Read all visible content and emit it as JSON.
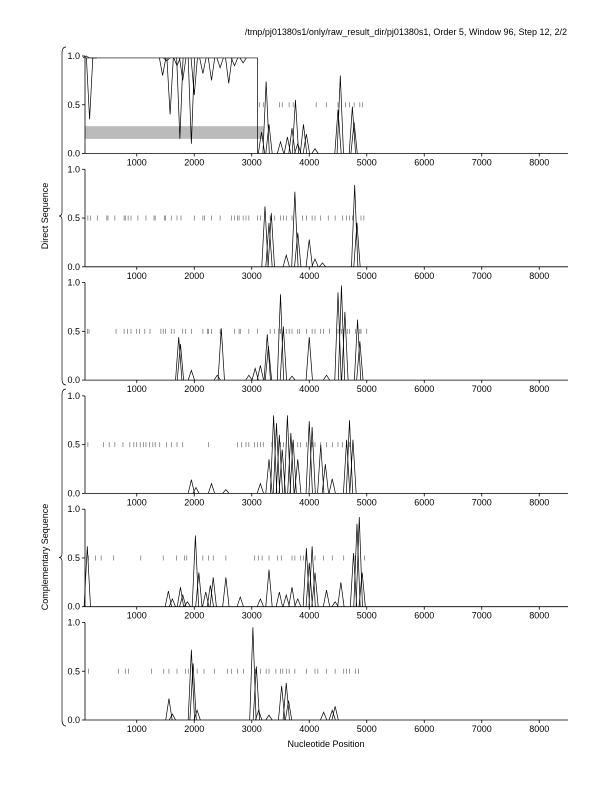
{
  "title": "/tmp/pj01380s1/only/raw_result_dir/pj01380s1, Order 5, Window 96, Step 12, 2/2",
  "xlabel": "Nucleotide Position",
  "group_labels": [
    "Direct Sequence",
    "Complementary Sequence"
  ],
  "colors": {
    "line": "#000000",
    "band": "#bbbbbb",
    "frame": "#000000"
  },
  "chart_data": [
    {
      "type": "line",
      "strand": "direct",
      "frame": 1,
      "xlim": [
        100,
        8500
      ],
      "ylim": [
        0,
        1
      ],
      "x_ticks": [
        1000,
        2000,
        3000,
        4000,
        5000,
        6000,
        7000,
        8000
      ],
      "y_ticks": [
        "0.0",
        "0.5",
        "1.0"
      ],
      "coding_region": [
        100,
        3100
      ],
      "shaded_band": [
        0.15,
        0.28
      ],
      "peaks": [
        {
          "x": 120,
          "y": 1.0
        },
        {
          "x": 180,
          "y": 0.35
        },
        {
          "x": 250,
          "y": 0.98
        },
        {
          "x": 1450,
          "y": 0.8
        },
        {
          "x": 1520,
          "y": 0.95
        },
        {
          "x": 1580,
          "y": 0.4
        },
        {
          "x": 1700,
          "y": 0.9
        },
        {
          "x": 1750,
          "y": 0.15
        },
        {
          "x": 1800,
          "y": 0.75
        },
        {
          "x": 1950,
          "y": 0.1
        },
        {
          "x": 2000,
          "y": 0.6
        },
        {
          "x": 2150,
          "y": 0.82
        },
        {
          "x": 2300,
          "y": 0.75
        },
        {
          "x": 2450,
          "y": 0.88
        },
        {
          "x": 2600,
          "y": 0.72
        },
        {
          "x": 2700,
          "y": 0.9
        },
        {
          "x": 2850,
          "y": 0.93
        },
        {
          "x": 3170,
          "y": 0.22
        },
        {
          "x": 3250,
          "y": 0.74
        },
        {
          "x": 3300,
          "y": 0.3
        },
        {
          "x": 3500,
          "y": 0.12
        },
        {
          "x": 3620,
          "y": 0.17
        },
        {
          "x": 3700,
          "y": 0.26
        },
        {
          "x": 3760,
          "y": 0.55
        },
        {
          "x": 3800,
          "y": 0.1
        },
        {
          "x": 3900,
          "y": 0.3
        },
        {
          "x": 3950,
          "y": 0.2
        },
        {
          "x": 4100,
          "y": 0.05
        },
        {
          "x": 4500,
          "y": 0.45
        },
        {
          "x": 4540,
          "y": 0.8
        },
        {
          "x": 4750,
          "y": 0.48
        },
        {
          "x": 4780,
          "y": 0.32
        }
      ],
      "stop_codons": [
        3130,
        3200,
        3480,
        3530,
        3650,
        3720,
        4120,
        4300,
        4500,
        4630,
        4700,
        4780,
        4880,
        4930
      ]
    },
    {
      "type": "line",
      "strand": "direct",
      "frame": 2,
      "xlim": [
        100,
        8500
      ],
      "ylim": [
        0,
        1
      ],
      "x_ticks": [
        1000,
        2000,
        3000,
        4000,
        5000,
        6000,
        7000,
        8000
      ],
      "y_ticks": [
        "0.0",
        "0.5",
        "1.0"
      ],
      "peaks": [
        {
          "x": 3230,
          "y": 0.62
        },
        {
          "x": 3300,
          "y": 0.45
        },
        {
          "x": 3340,
          "y": 0.55
        },
        {
          "x": 3600,
          "y": 0.12
        },
        {
          "x": 3750,
          "y": 0.77
        },
        {
          "x": 3800,
          "y": 0.35
        },
        {
          "x": 4000,
          "y": 0.28
        },
        {
          "x": 4100,
          "y": 0.08
        },
        {
          "x": 4230,
          "y": 0.04
        },
        {
          "x": 4790,
          "y": 0.84
        },
        {
          "x": 4830,
          "y": 0.45
        }
      ],
      "stop_codons": [
        150,
        200,
        320,
        480,
        500,
        620,
        780,
        800,
        850,
        900,
        1020,
        1160,
        1300,
        1320,
        1480,
        1500,
        1600,
        1700,
        1770,
        2000,
        2150,
        2180,
        2300,
        2450,
        2650,
        2700,
        2750,
        2780,
        2850,
        2900,
        2950,
        3100,
        3150,
        3320,
        3400,
        3500,
        3550,
        3600,
        3700,
        3880,
        3950,
        4050,
        4100,
        4200,
        4330,
        4450,
        4580,
        4650,
        4700,
        4750,
        4900,
        4950
      ]
    },
    {
      "type": "line",
      "strand": "direct",
      "frame": 3,
      "xlim": [
        100,
        8500
      ],
      "ylim": [
        0,
        1
      ],
      "x_ticks": [
        1000,
        2000,
        3000,
        4000,
        5000,
        6000,
        7000,
        8000
      ],
      "y_ticks": [
        "0.0",
        "0.5",
        "1.0"
      ],
      "peaks": [
        {
          "x": 1730,
          "y": 0.44
        },
        {
          "x": 1760,
          "y": 0.37
        },
        {
          "x": 1950,
          "y": 0.1
        },
        {
          "x": 2400,
          "y": 0.05
        },
        {
          "x": 2470,
          "y": 0.53
        },
        {
          "x": 2950,
          "y": 0.05
        },
        {
          "x": 3060,
          "y": 0.12
        },
        {
          "x": 3150,
          "y": 0.15
        },
        {
          "x": 3270,
          "y": 0.47
        },
        {
          "x": 3290,
          "y": 0.35
        },
        {
          "x": 3500,
          "y": 0.88
        },
        {
          "x": 3550,
          "y": 0.55
        },
        {
          "x": 3700,
          "y": 0.04
        },
        {
          "x": 4000,
          "y": 0.44
        },
        {
          "x": 4300,
          "y": 0.05
        },
        {
          "x": 4500,
          "y": 0.9
        },
        {
          "x": 4560,
          "y": 0.97
        },
        {
          "x": 4620,
          "y": 0.7
        },
        {
          "x": 4840,
          "y": 0.62
        },
        {
          "x": 4880,
          "y": 0.4
        }
      ],
      "stop_codons": [
        140,
        170,
        640,
        780,
        840,
        900,
        1000,
        1050,
        1140,
        1230,
        1420,
        1460,
        1500,
        1600,
        1650,
        1800,
        1850,
        1950,
        2150,
        2230,
        2250,
        2300,
        2450,
        2700,
        2780,
        2800,
        2950,
        3100,
        3320,
        3400,
        3470,
        3500,
        3600,
        3650,
        3700,
        3800,
        3830,
        3950,
        4050,
        4100,
        4200,
        4250,
        4350,
        4500,
        4560,
        4600,
        4660,
        4700,
        4800,
        4880,
        4900,
        5000
      ]
    },
    {
      "type": "line",
      "strand": "complementary",
      "frame": 1,
      "xlim": [
        100,
        8500
      ],
      "ylim": [
        0,
        1
      ],
      "x_ticks": [
        1000,
        2000,
        3000,
        4000,
        5000,
        6000,
        7000,
        8000
      ],
      "y_ticks": [
        "0.0",
        "0.5",
        "1.0"
      ],
      "peaks": [
        {
          "x": 1950,
          "y": 0.14
        },
        {
          "x": 2030,
          "y": 0.06
        },
        {
          "x": 2300,
          "y": 0.1
        },
        {
          "x": 2550,
          "y": 0.04
        },
        {
          "x": 3150,
          "y": 0.1
        },
        {
          "x": 3300,
          "y": 0.35
        },
        {
          "x": 3380,
          "y": 0.8
        },
        {
          "x": 3430,
          "y": 0.72
        },
        {
          "x": 3480,
          "y": 0.6
        },
        {
          "x": 3530,
          "y": 0.45
        },
        {
          "x": 3620,
          "y": 0.8
        },
        {
          "x": 3680,
          "y": 0.62
        },
        {
          "x": 3720,
          "y": 0.55
        },
        {
          "x": 3800,
          "y": 0.35
        },
        {
          "x": 4000,
          "y": 0.74
        },
        {
          "x": 4050,
          "y": 0.68
        },
        {
          "x": 4200,
          "y": 0.5
        },
        {
          "x": 4280,
          "y": 0.3
        },
        {
          "x": 4400,
          "y": 0.15
        },
        {
          "x": 4650,
          "y": 0.55
        },
        {
          "x": 4700,
          "y": 0.75
        },
        {
          "x": 4760,
          "y": 0.55
        }
      ],
      "stop_codons": [
        150,
        420,
        520,
        620,
        760,
        880,
        950,
        1000,
        1060,
        1120,
        1160,
        1220,
        1280,
        1320,
        1400,
        1520,
        1600,
        1700,
        1800,
        2250,
        2750,
        2820,
        2900,
        2950,
        3050,
        3100,
        3150,
        3200,
        3350,
        3400,
        3470,
        3500,
        3550,
        3600,
        3700,
        3800,
        3850,
        3950,
        4050,
        4100,
        4200,
        4300,
        4400,
        4500,
        4580,
        4650,
        4700
      ]
    },
    {
      "type": "line",
      "strand": "complementary",
      "frame": 2,
      "xlim": [
        100,
        8500
      ],
      "ylim": [
        0,
        1
      ],
      "x_ticks": [
        1000,
        2000,
        3000,
        4000,
        5000,
        6000,
        7000,
        8000
      ],
      "y_ticks": [
        "0.0",
        "0.5",
        "1.0"
      ],
      "peaks": [
        {
          "x": 140,
          "y": 0.62
        },
        {
          "x": 1550,
          "y": 0.16
        },
        {
          "x": 1620,
          "y": 0.08
        },
        {
          "x": 1760,
          "y": 0.2
        },
        {
          "x": 1800,
          "y": 0.12
        },
        {
          "x": 1880,
          "y": 0.05
        },
        {
          "x": 2020,
          "y": 0.73
        },
        {
          "x": 2080,
          "y": 0.35
        },
        {
          "x": 2200,
          "y": 0.15
        },
        {
          "x": 2280,
          "y": 0.22
        },
        {
          "x": 2330,
          "y": 0.3
        },
        {
          "x": 2550,
          "y": 0.3
        },
        {
          "x": 2800,
          "y": 0.1
        },
        {
          "x": 3150,
          "y": 0.08
        },
        {
          "x": 3300,
          "y": 0.38
        },
        {
          "x": 3480,
          "y": 0.15
        },
        {
          "x": 3600,
          "y": 0.12
        },
        {
          "x": 3700,
          "y": 0.2
        },
        {
          "x": 3800,
          "y": 0.08
        },
        {
          "x": 3950,
          "y": 0.6
        },
        {
          "x": 4000,
          "y": 0.45
        },
        {
          "x": 4050,
          "y": 0.62
        },
        {
          "x": 4100,
          "y": 0.35
        },
        {
          "x": 4300,
          "y": 0.17
        },
        {
          "x": 4450,
          "y": 0.05
        },
        {
          "x": 4550,
          "y": 0.25
        },
        {
          "x": 4770,
          "y": 0.55
        },
        {
          "x": 4830,
          "y": 0.85
        },
        {
          "x": 4870,
          "y": 0.92
        },
        {
          "x": 4920,
          "y": 0.35
        }
      ],
      "stop_codons": [
        160,
        280,
        380,
        600,
        1070,
        1460,
        1690,
        1830,
        1870,
        2000,
        2150,
        2250,
        2330,
        2550,
        3050,
        3120,
        3180,
        3300,
        3450,
        3520,
        3700,
        3750,
        3850,
        3900,
        3950,
        4100,
        4250,
        4400,
        4600,
        4800,
        4960
      ]
    },
    {
      "type": "line",
      "strand": "complementary",
      "frame": 3,
      "xlim": [
        100,
        8500
      ],
      "ylim": [
        0,
        1
      ],
      "x_ticks": [
        1000,
        2000,
        3000,
        4000,
        5000,
        6000,
        7000,
        8000
      ],
      "y_ticks": [
        "0.0",
        "0.5",
        "1.0"
      ],
      "peaks": [
        {
          "x": 1560,
          "y": 0.22
        },
        {
          "x": 1620,
          "y": 0.06
        },
        {
          "x": 1950,
          "y": 0.72
        },
        {
          "x": 1980,
          "y": 0.58
        },
        {
          "x": 2050,
          "y": 0.1
        },
        {
          "x": 3020,
          "y": 0.95
        },
        {
          "x": 3080,
          "y": 0.55
        },
        {
          "x": 3120,
          "y": 0.1
        },
        {
          "x": 3300,
          "y": 0.05
        },
        {
          "x": 3520,
          "y": 0.35
        },
        {
          "x": 3600,
          "y": 0.38
        },
        {
          "x": 3640,
          "y": 0.2
        },
        {
          "x": 4250,
          "y": 0.08
        },
        {
          "x": 4400,
          "y": 0.1
        },
        {
          "x": 4450,
          "y": 0.14
        }
      ],
      "stop_codons": [
        160,
        680,
        800,
        860,
        1260,
        1470,
        1560,
        1700,
        1850,
        1900,
        2050,
        2170,
        2350,
        2580,
        2650,
        2750,
        2860,
        3060,
        3150,
        3250,
        3300,
        3420,
        3500,
        3540,
        3600,
        3650,
        3750,
        3950,
        4100,
        4150,
        4300,
        4450,
        4600,
        4650,
        4700,
        4800,
        4860
      ]
    }
  ]
}
